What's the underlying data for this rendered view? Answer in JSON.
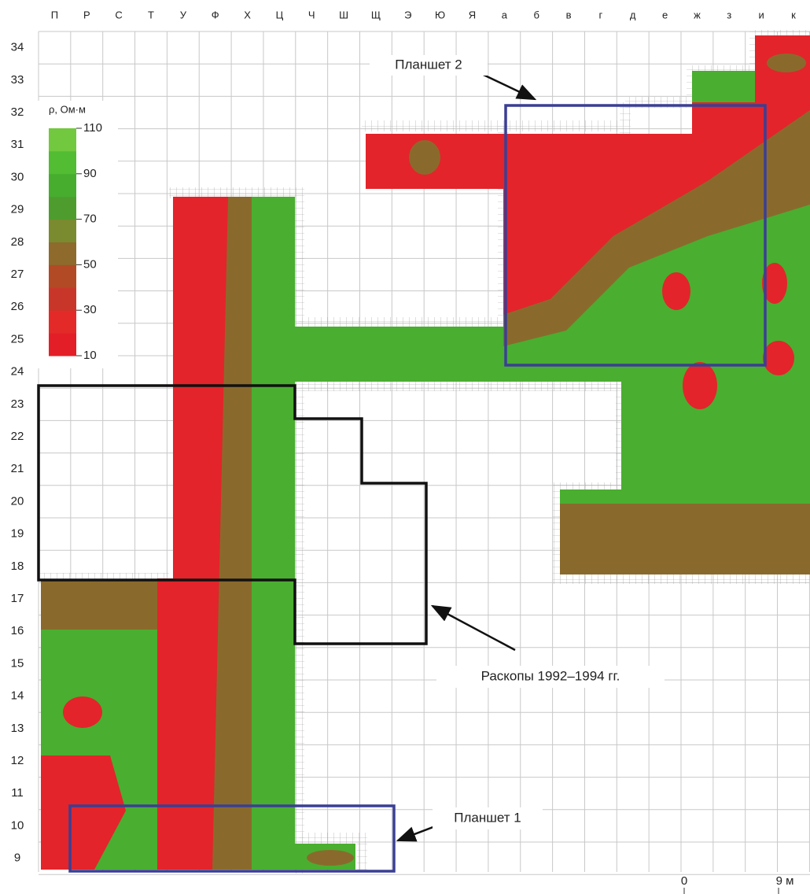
{
  "columns": [
    "П",
    "Р",
    "С",
    "Т",
    "У",
    "Ф",
    "Х",
    "Ц",
    "Ч",
    "Ш",
    "Щ",
    "Э",
    "Ю",
    "Я",
    "а",
    "б",
    "в",
    "г",
    "д",
    "е",
    "ж",
    "з",
    "и",
    "к"
  ],
  "rows": [
    34,
    33,
    32,
    31,
    30,
    29,
    28,
    27,
    26,
    25,
    24,
    23,
    22,
    21,
    20,
    19,
    18,
    17,
    16,
    15,
    14,
    13,
    12,
    11,
    10,
    9
  ],
  "legend": {
    "title": "ρ, Ом·м",
    "ticks": [
      110,
      90,
      70,
      50,
      30,
      10
    ],
    "range": [
      10,
      110
    ],
    "colors": [
      "#e41e26",
      "#e42a28",
      "#c8362a",
      "#b24a26",
      "#8e6a2c",
      "#7a8a2e",
      "#4f9c2e",
      "#46ad2e",
      "#52bc33",
      "#72c83e"
    ]
  },
  "annotations": {
    "plot2": "Планшет 2",
    "excavations": "Раскопы 1992–1994 гг.",
    "plot1": "Планшет 1"
  },
  "scale": {
    "start": "0",
    "end": "9 м"
  }
}
